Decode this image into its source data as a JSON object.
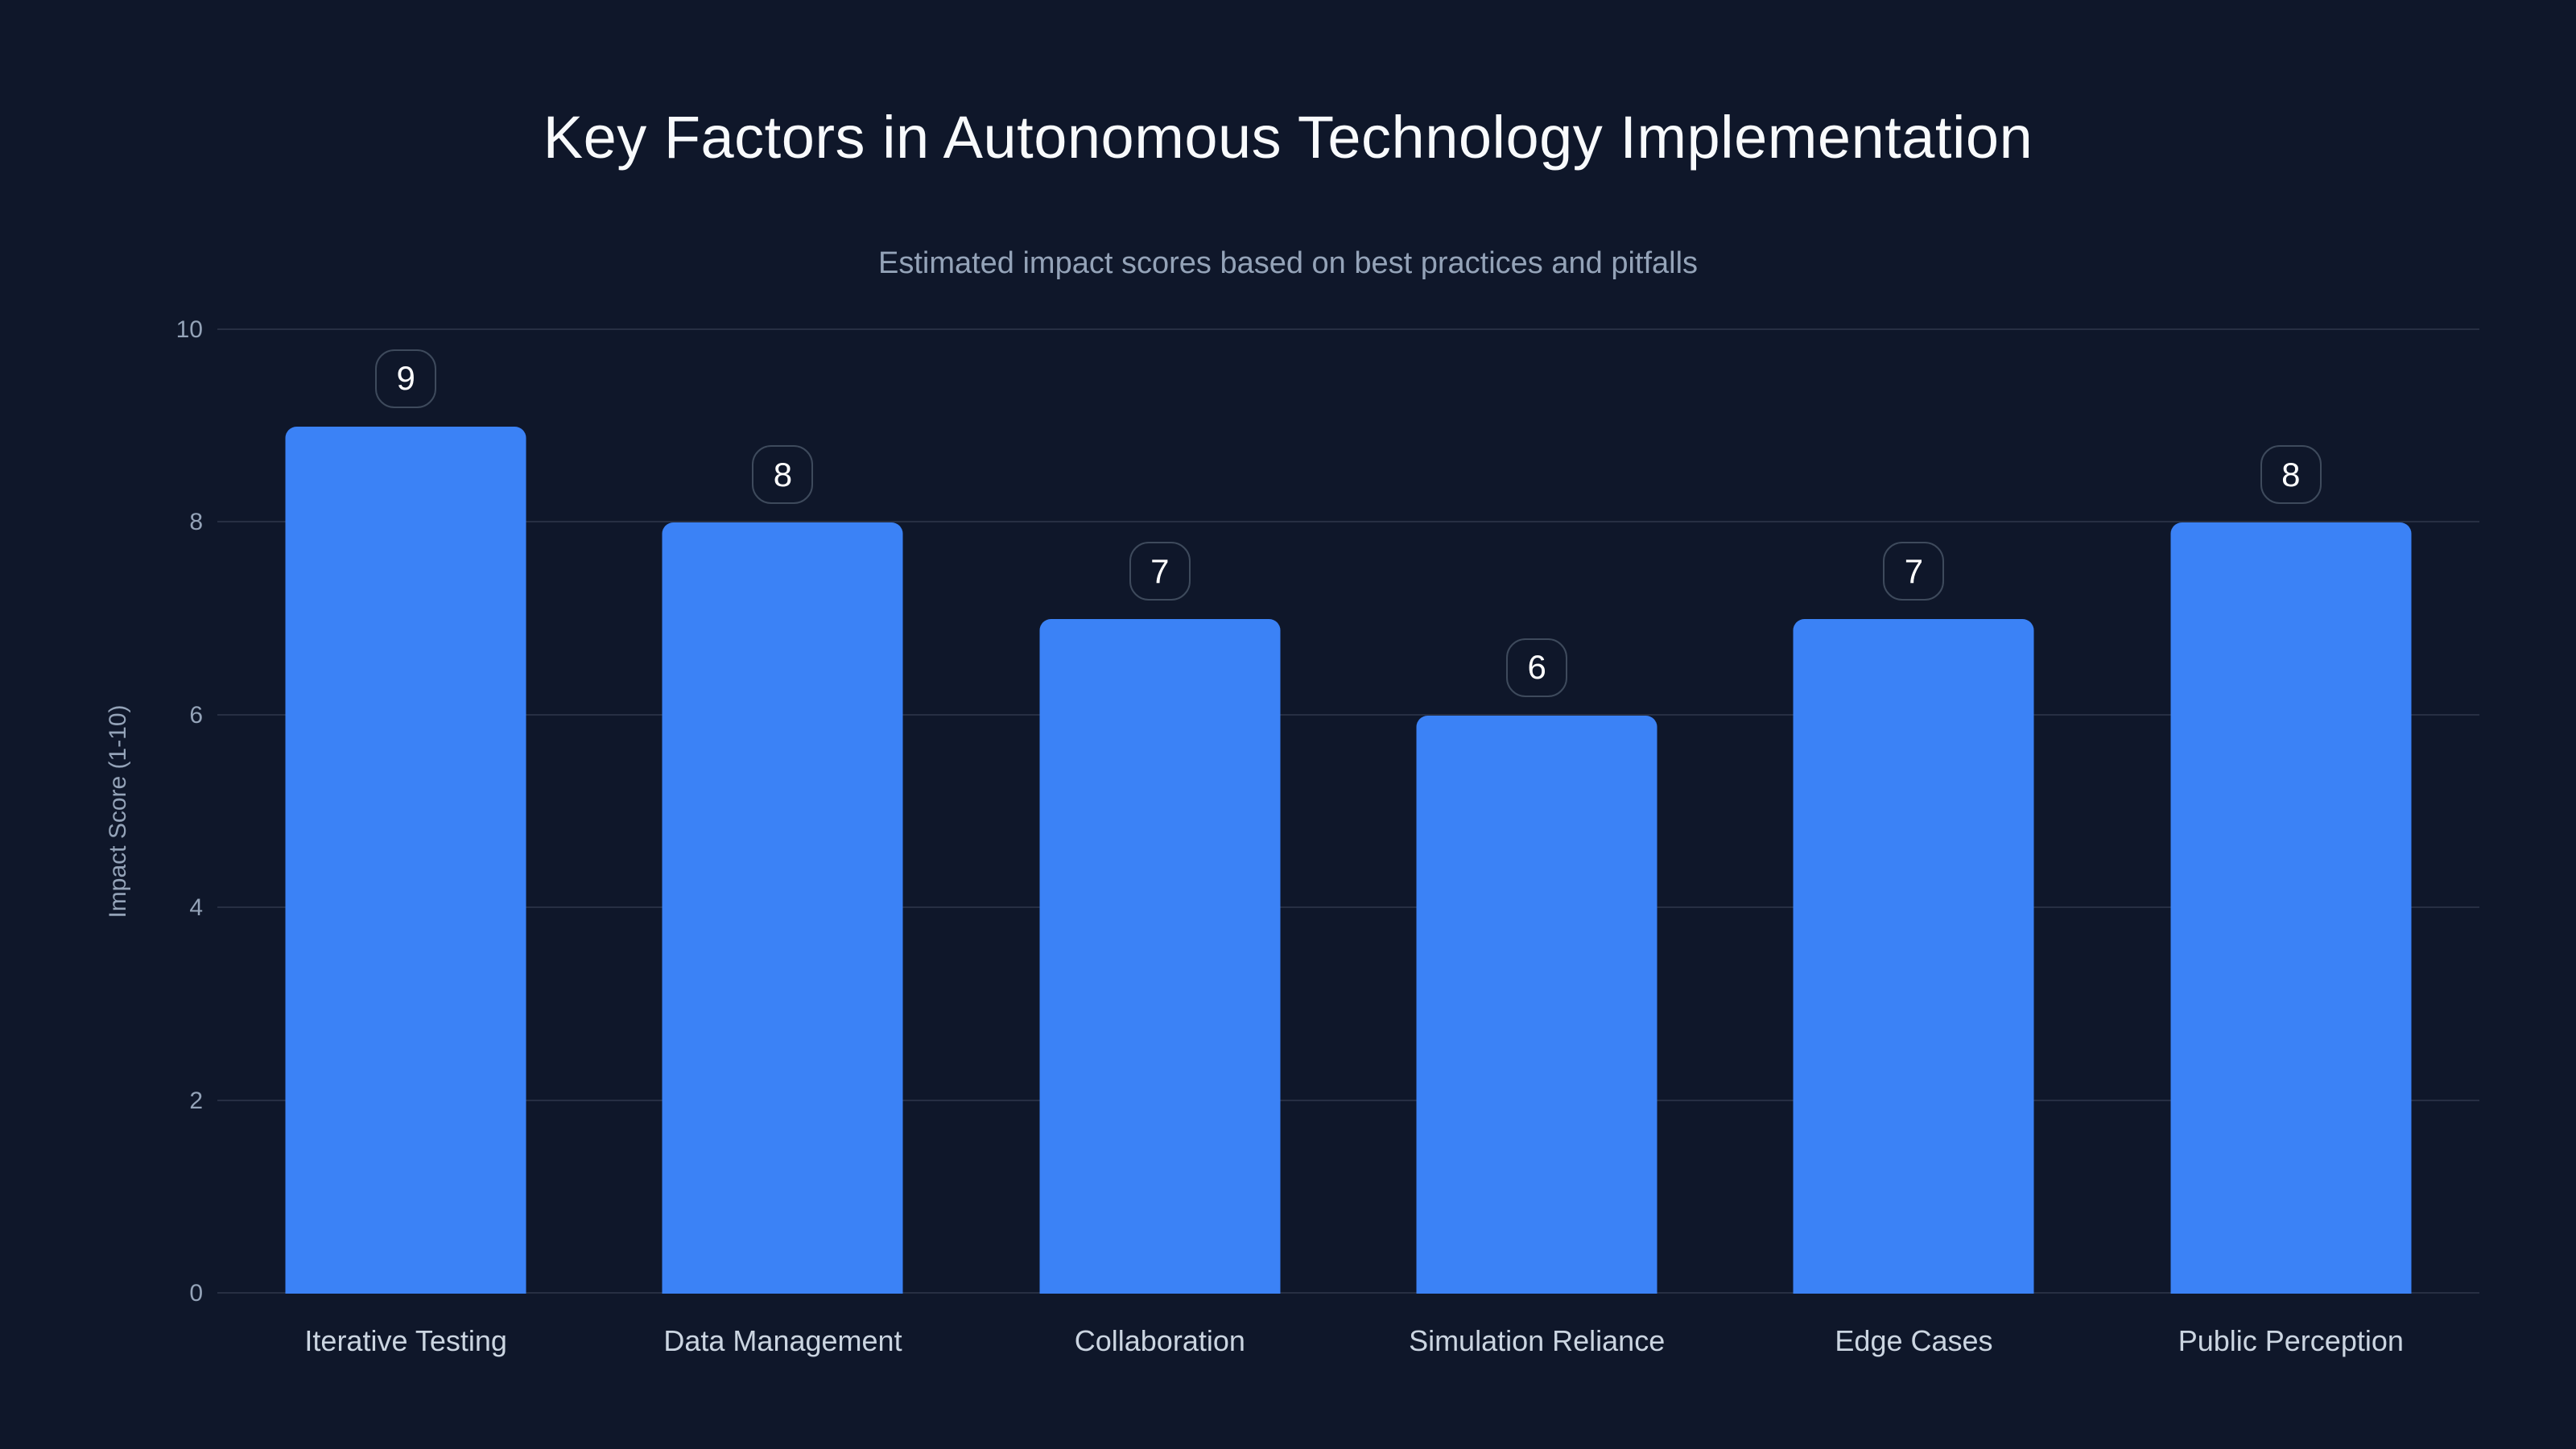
{
  "header": {
    "title": "Key Factors in Autonomous Technology Implementation",
    "subtitle": "Estimated impact scores based on best practices and pitfalls"
  },
  "chart_data": {
    "type": "bar",
    "title": "Key Factors in Autonomous Technology Implementation",
    "subtitle": "Estimated impact scores based on best practices and pitfalls",
    "categories": [
      "Iterative Testing",
      "Data Management",
      "Collaboration",
      "Simulation Reliance",
      "Edge Cases",
      "Public Perception"
    ],
    "values": [
      9,
      8,
      7,
      6,
      7,
      8
    ],
    "data_labels": [
      "9",
      "8",
      "7",
      "6",
      "7",
      "8"
    ],
    "xlabel": "",
    "ylabel": "Impact Score (1-10)",
    "ylim": [
      0,
      10
    ],
    "yticks": [
      0,
      2,
      4,
      6,
      8,
      10
    ],
    "grid": "horizontal",
    "legend": "none",
    "bar_color": "#3b82f6"
  },
  "colors": {
    "background": "#0f172a",
    "bar": "#3b82f6",
    "title_text": "#f8fafc",
    "subtitle_text": "#94a3b8",
    "tick_text": "#94a3b8",
    "category_text": "#cbd5e1",
    "badge_border": "#3e4a5c",
    "badge_text": "#ffffff",
    "gridline": "rgba(148,163,184,0.18)"
  }
}
